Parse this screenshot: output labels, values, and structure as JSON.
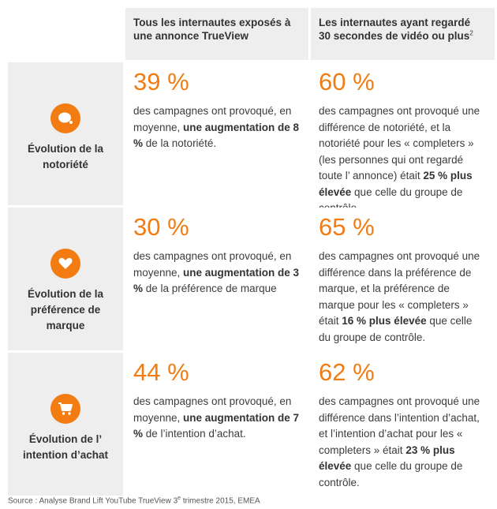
{
  "headers": {
    "col1": "Tous les internautes exposés à une annonce TrueView",
    "col2_line1": "Les internautes ayant regardé",
    "col2_line2": "30 secondes de vidéo ou plus",
    "col2_sup": "2"
  },
  "rows": [
    {
      "icon": "chat-bubble-icon",
      "title": "Évolution de la notoriété",
      "all_pct": "39 %",
      "all_pre": "des campagnes ont provoqué, en moyenne, ",
      "all_bold": "une augmentation de 8 %",
      "all_post": " de la notoriété.",
      "view_pct": "60 %",
      "view_pre": "des campagnes ont provoqué une différence de notoriété, et la notoriété pour les « completers » (les personnes qui ont regardé toute l’ annonce) était ",
      "view_bold": "25 % plus élevée",
      "view_post": " que celle du groupe de contrôle."
    },
    {
      "icon": "heart-icon",
      "title": "Évolution de la préférence de marque",
      "all_pct": "30 %",
      "all_pre": "des campagnes ont provoqué, en moyenne, ",
      "all_bold": "une augmentation de 3 %",
      "all_post": " de la préférence de marque",
      "view_pct": "65 %",
      "view_pre": "des campagnes ont provoqué une différence dans la préférence de marque, et la préférence de marque pour les « completers » était ",
      "view_bold": "16 % plus élevée",
      "view_post": " que celle du groupe de contrôle."
    },
    {
      "icon": "shopping-cart-icon",
      "title": "Évolution de l’ intention d’achat",
      "all_pct": "44 %",
      "all_pre": "des campagnes ont provoqué, en moyenne, ",
      "all_bold": "une augmentation de 7 %",
      "all_post": " de l’intention d’achat.",
      "view_pct": "62 %",
      "view_pre": "des campagnes ont provoqué une différence dans l’intention d’achat, et l’intention d’achat pour les « completers » était ",
      "view_bold": "23 % plus élevée",
      "view_post": " que celle du groupe de contrôle."
    }
  ],
  "source": {
    "pre": "Source : Analyse Brand Lift YouTube TrueView 3",
    "sup": "e",
    "post": " trimestre 2015, EMEA"
  },
  "colors": {
    "accent": "#f27c11",
    "panel": "#eeeeee",
    "text": "#3c3c3c"
  }
}
